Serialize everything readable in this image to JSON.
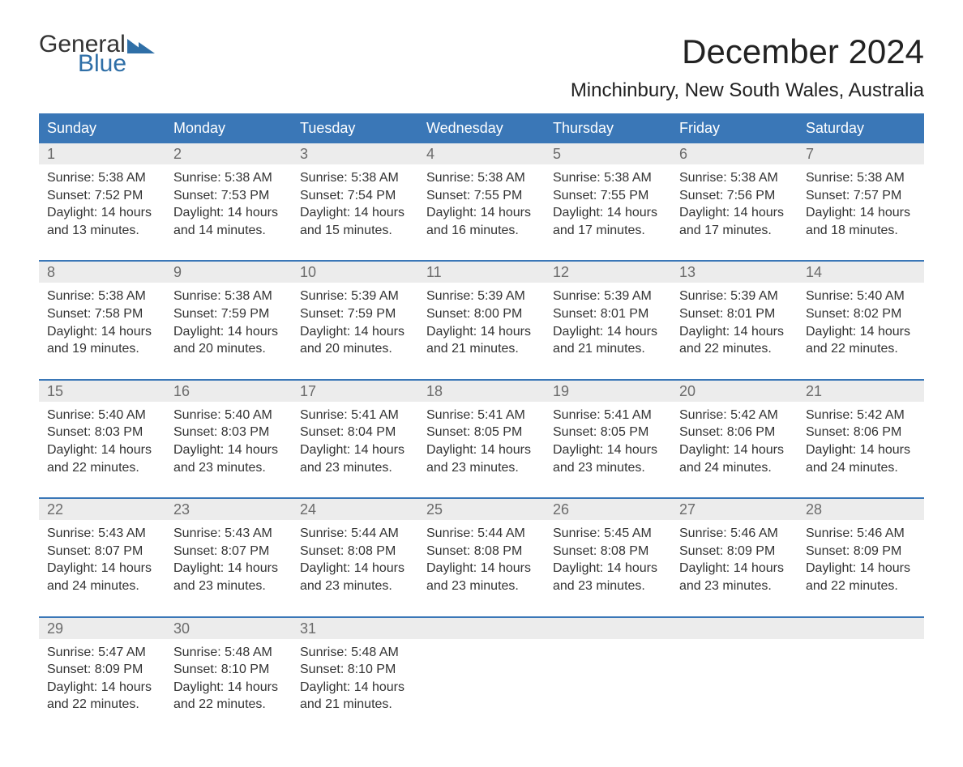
{
  "logo": {
    "line1": "General",
    "line2": "Blue"
  },
  "title": "December 2024",
  "subtitle": "Minchinbury, New South Wales, Australia",
  "colors": {
    "header_bg": "#3a77b7",
    "header_text": "#ffffff",
    "daynum_bg": "#ececec",
    "daynum_text": "#6b6b6b",
    "body_text": "#333333",
    "logo_blue": "#2f6fa7",
    "rule": "#3a77b7",
    "page_bg": "#ffffff"
  },
  "dayNames": [
    "Sunday",
    "Monday",
    "Tuesday",
    "Wednesday",
    "Thursday",
    "Friday",
    "Saturday"
  ],
  "labels": {
    "sunrise": "Sunrise: ",
    "sunset": "Sunset: ",
    "daylight_prefix": "Daylight: ",
    "daylight_hours_word": " hours",
    "daylight_and": "and ",
    "daylight_minutes_word": " minutes."
  },
  "days": [
    {
      "n": 1,
      "sunrise": "5:38 AM",
      "sunset": "7:52 PM",
      "dh": 14,
      "dm": 13
    },
    {
      "n": 2,
      "sunrise": "5:38 AM",
      "sunset": "7:53 PM",
      "dh": 14,
      "dm": 14
    },
    {
      "n": 3,
      "sunrise": "5:38 AM",
      "sunset": "7:54 PM",
      "dh": 14,
      "dm": 15
    },
    {
      "n": 4,
      "sunrise": "5:38 AM",
      "sunset": "7:55 PM",
      "dh": 14,
      "dm": 16
    },
    {
      "n": 5,
      "sunrise": "5:38 AM",
      "sunset": "7:55 PM",
      "dh": 14,
      "dm": 17
    },
    {
      "n": 6,
      "sunrise": "5:38 AM",
      "sunset": "7:56 PM",
      "dh": 14,
      "dm": 17
    },
    {
      "n": 7,
      "sunrise": "5:38 AM",
      "sunset": "7:57 PM",
      "dh": 14,
      "dm": 18
    },
    {
      "n": 8,
      "sunrise": "5:38 AM",
      "sunset": "7:58 PM",
      "dh": 14,
      "dm": 19
    },
    {
      "n": 9,
      "sunrise": "5:38 AM",
      "sunset": "7:59 PM",
      "dh": 14,
      "dm": 20
    },
    {
      "n": 10,
      "sunrise": "5:39 AM",
      "sunset": "7:59 PM",
      "dh": 14,
      "dm": 20
    },
    {
      "n": 11,
      "sunrise": "5:39 AM",
      "sunset": "8:00 PM",
      "dh": 14,
      "dm": 21
    },
    {
      "n": 12,
      "sunrise": "5:39 AM",
      "sunset": "8:01 PM",
      "dh": 14,
      "dm": 21
    },
    {
      "n": 13,
      "sunrise": "5:39 AM",
      "sunset": "8:01 PM",
      "dh": 14,
      "dm": 22
    },
    {
      "n": 14,
      "sunrise": "5:40 AM",
      "sunset": "8:02 PM",
      "dh": 14,
      "dm": 22
    },
    {
      "n": 15,
      "sunrise": "5:40 AM",
      "sunset": "8:03 PM",
      "dh": 14,
      "dm": 22
    },
    {
      "n": 16,
      "sunrise": "5:40 AM",
      "sunset": "8:03 PM",
      "dh": 14,
      "dm": 23
    },
    {
      "n": 17,
      "sunrise": "5:41 AM",
      "sunset": "8:04 PM",
      "dh": 14,
      "dm": 23
    },
    {
      "n": 18,
      "sunrise": "5:41 AM",
      "sunset": "8:05 PM",
      "dh": 14,
      "dm": 23
    },
    {
      "n": 19,
      "sunrise": "5:41 AM",
      "sunset": "8:05 PM",
      "dh": 14,
      "dm": 23
    },
    {
      "n": 20,
      "sunrise": "5:42 AM",
      "sunset": "8:06 PM",
      "dh": 14,
      "dm": 24
    },
    {
      "n": 21,
      "sunrise": "5:42 AM",
      "sunset": "8:06 PM",
      "dh": 14,
      "dm": 24
    },
    {
      "n": 22,
      "sunrise": "5:43 AM",
      "sunset": "8:07 PM",
      "dh": 14,
      "dm": 24
    },
    {
      "n": 23,
      "sunrise": "5:43 AM",
      "sunset": "8:07 PM",
      "dh": 14,
      "dm": 23
    },
    {
      "n": 24,
      "sunrise": "5:44 AM",
      "sunset": "8:08 PM",
      "dh": 14,
      "dm": 23
    },
    {
      "n": 25,
      "sunrise": "5:44 AM",
      "sunset": "8:08 PM",
      "dh": 14,
      "dm": 23
    },
    {
      "n": 26,
      "sunrise": "5:45 AM",
      "sunset": "8:08 PM",
      "dh": 14,
      "dm": 23
    },
    {
      "n": 27,
      "sunrise": "5:46 AM",
      "sunset": "8:09 PM",
      "dh": 14,
      "dm": 23
    },
    {
      "n": 28,
      "sunrise": "5:46 AM",
      "sunset": "8:09 PM",
      "dh": 14,
      "dm": 22
    },
    {
      "n": 29,
      "sunrise": "5:47 AM",
      "sunset": "8:09 PM",
      "dh": 14,
      "dm": 22
    },
    {
      "n": 30,
      "sunrise": "5:48 AM",
      "sunset": "8:10 PM",
      "dh": 14,
      "dm": 22
    },
    {
      "n": 31,
      "sunrise": "5:48 AM",
      "sunset": "8:10 PM",
      "dh": 14,
      "dm": 21
    }
  ],
  "layout": {
    "columns": 7,
    "start_day_index": 0,
    "fonts": {
      "title_pt": 42,
      "subtitle_pt": 24,
      "day_header_pt": 18,
      "daynum_pt": 18,
      "cell_pt": 16
    }
  }
}
